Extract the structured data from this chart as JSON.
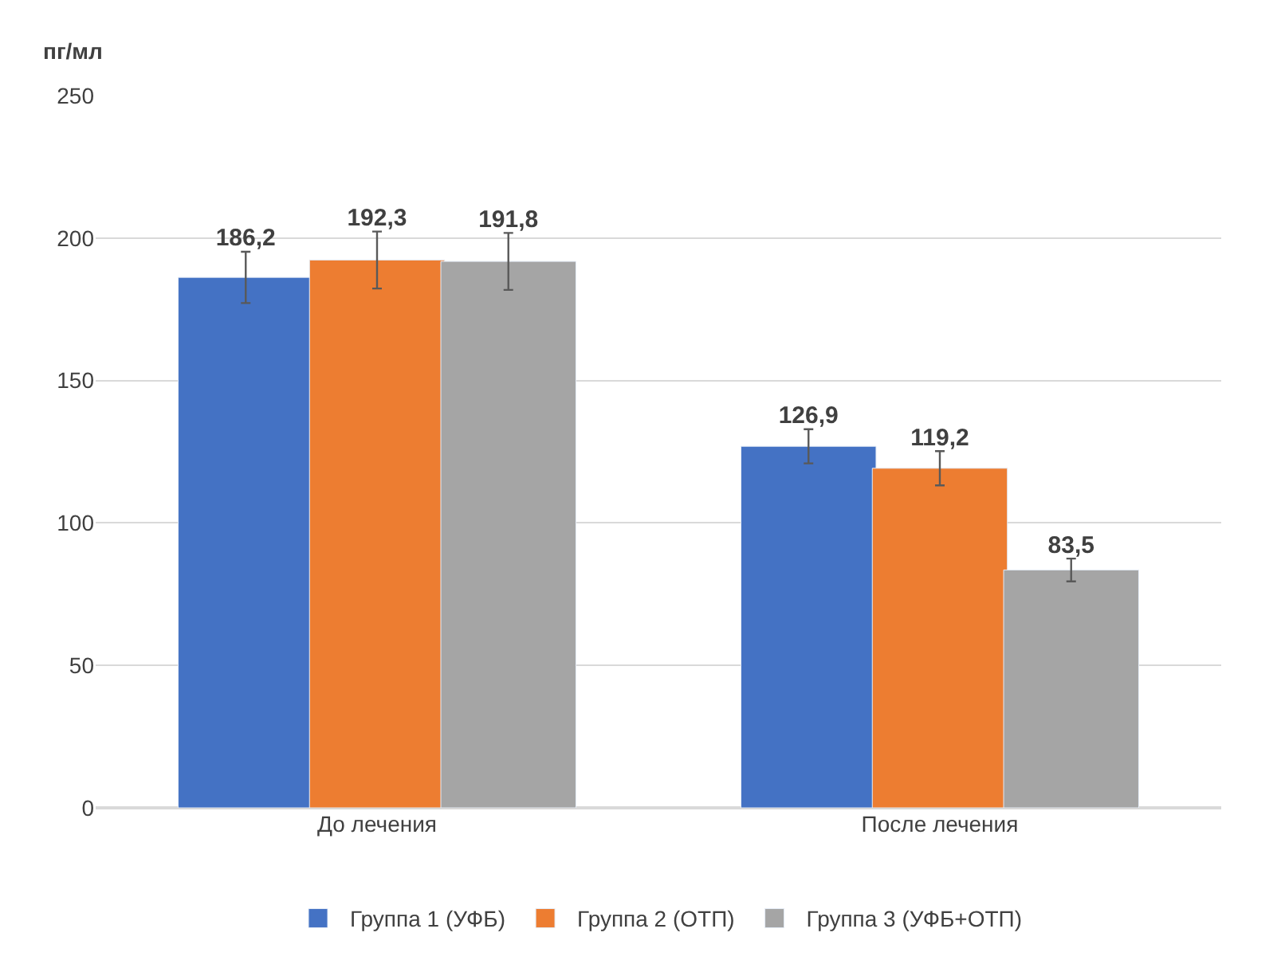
{
  "chart_data": {
    "type": "bar",
    "ylabel": "пг/мл",
    "categories": [
      "До лечения",
      "После лечения"
    ],
    "series": [
      {
        "name": "Группа 1 (УФБ)",
        "color": "#4472c4",
        "values": [
          186.2,
          126.9
        ],
        "errors": [
          9,
          6
        ],
        "value_labels": [
          "186,2",
          "126,9"
        ]
      },
      {
        "name": "Группа 2 (ОТП)",
        "color": "#ed7d31",
        "values": [
          192.3,
          119.2
        ],
        "errors": [
          10,
          6
        ],
        "value_labels": [
          "192,3",
          "119,2"
        ]
      },
      {
        "name": "Группа 3 (УФБ+ОТП)",
        "color": "#a5a5a5",
        "values": [
          191.8,
          83.5
        ],
        "errors": [
          10,
          4
        ],
        "value_labels": [
          "191,8",
          "83,5"
        ]
      }
    ],
    "ylim": [
      0,
      250
    ],
    "yticks": [
      0,
      50,
      100,
      150,
      200,
      250
    ],
    "grid": "y",
    "legend": "bottom"
  }
}
